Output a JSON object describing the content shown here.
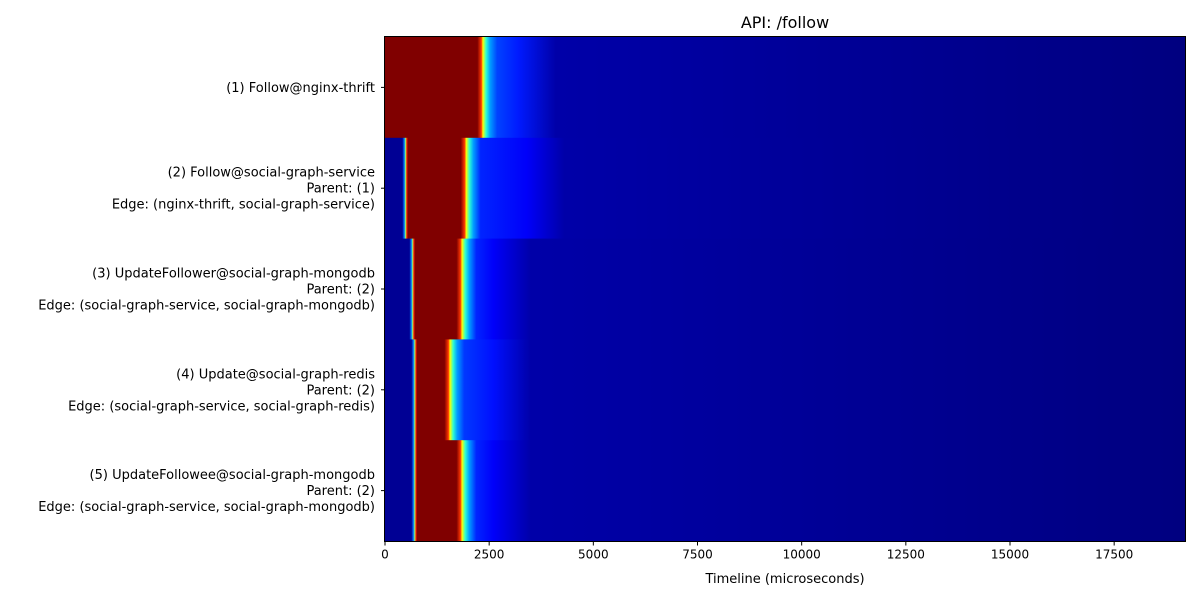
{
  "chart_data": {
    "type": "heatmap",
    "title": "API: /follow",
    "xlabel": "Timeline (microseconds)",
    "ylabel": "",
    "xlim": [
      0,
      19200
    ],
    "xticks": [
      0,
      2500,
      5000,
      7500,
      10000,
      12500,
      15000,
      17500
    ],
    "xtick_labels": [
      "0",
      "2500",
      "5000",
      "7500",
      "10000",
      "12500",
      "15000",
      "17500"
    ],
    "colormap": "jet",
    "grid": false,
    "rows": [
      {
        "label_lines": [
          "(1) Follow@nginx-thrift"
        ],
        "start_us": 0,
        "end_us": 2350,
        "fade_us": 3200,
        "fade_level": 0.15
      },
      {
        "label_lines": [
          "(2) Follow@social-graph-service",
          "Parent: (1)",
          "Edge: (nginx-thrift, social-graph-service)"
        ],
        "start_us": 520,
        "end_us": 1950,
        "fade_us": 3400,
        "fade_level": 0.12
      },
      {
        "label_lines": [
          "(3) UpdateFollower@social-graph-mongodb",
          "Parent: (2)",
          "Edge: (social-graph-service, social-graph-mongodb)"
        ],
        "start_us": 690,
        "end_us": 1850,
        "fade_us": 2600,
        "fade_level": 0.12
      },
      {
        "label_lines": [
          "(4) Update@social-graph-redis",
          "Parent: (2)",
          "Edge: (social-graph-service, social-graph-redis)"
        ],
        "start_us": 740,
        "end_us": 1560,
        "fade_us": 2600,
        "fade_level": 0.14
      },
      {
        "label_lines": [
          "(5) UpdateFollowee@social-graph-mongodb",
          "Parent: (2)",
          "Edge: (social-graph-service, social-graph-mongodb)"
        ],
        "start_us": 740,
        "end_us": 1850,
        "fade_us": 2600,
        "fade_level": 0.12
      }
    ]
  }
}
